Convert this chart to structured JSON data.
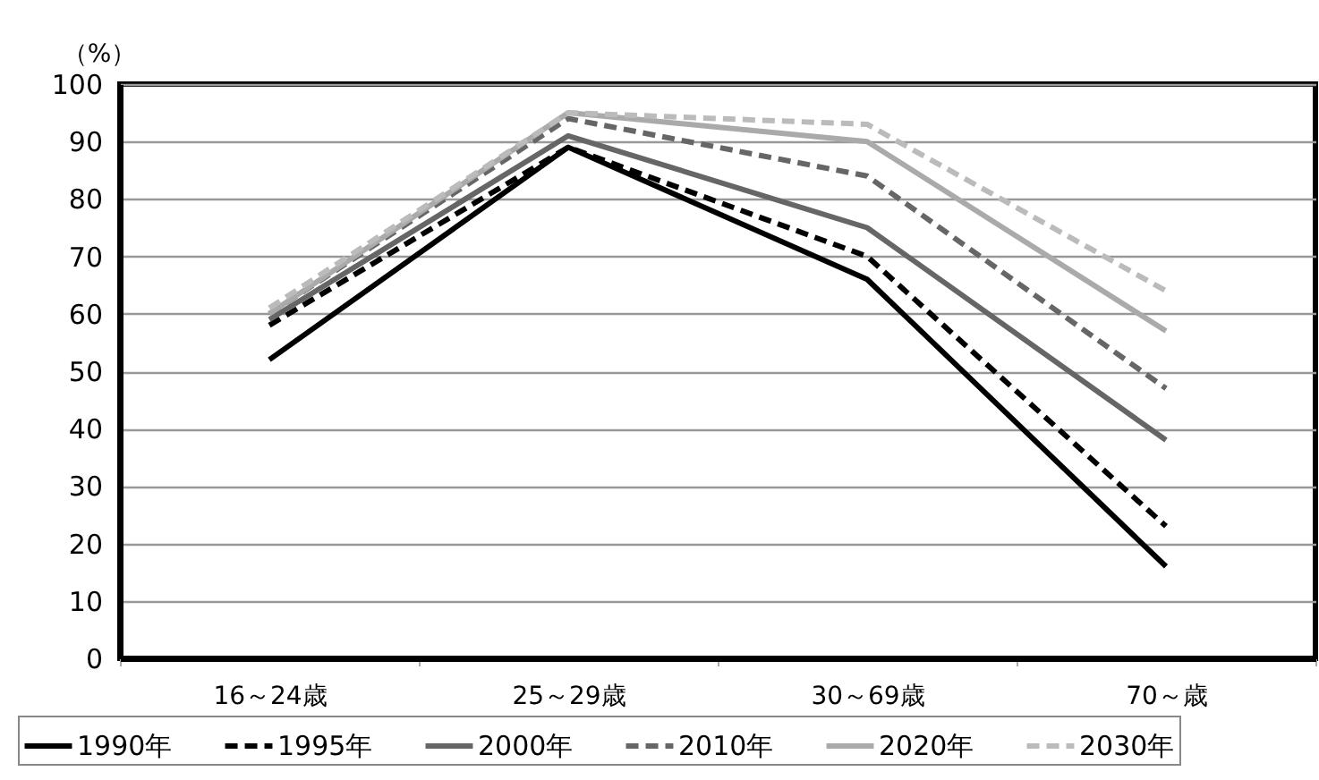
{
  "chart_data": {
    "type": "line",
    "ylabel": "（%）",
    "categories": [
      "16～24歳",
      "25～29歳",
      "30～69歳",
      "70～歳"
    ],
    "series": [
      {
        "name": "1990年",
        "color": "#000000",
        "line_style": "solid",
        "values": [
          52,
          89,
          66,
          16
        ]
      },
      {
        "name": "1995年",
        "color": "#000000",
        "line_style": "dashed",
        "values": [
          58,
          89,
          70,
          23
        ]
      },
      {
        "name": "2000年",
        "color": "#666666",
        "line_style": "solid",
        "values": [
          59,
          91,
          75,
          38
        ]
      },
      {
        "name": "2010年",
        "color": "#666666",
        "line_style": "dashed",
        "values": [
          60,
          94,
          84,
          47
        ]
      },
      {
        "name": "2020年",
        "color": "#aaaaaa",
        "line_style": "solid",
        "values": [
          60,
          95,
          90,
          57
        ]
      },
      {
        "name": "2030年",
        "color": "#bbbbbb",
        "line_style": "dashed",
        "values": [
          61,
          95,
          93,
          64
        ]
      }
    ],
    "ylim": [
      0,
      100
    ],
    "yticks": [
      0,
      10,
      20,
      30,
      40,
      50,
      60,
      70,
      80,
      90,
      100
    ],
    "grid": "y",
    "legend": "bottom",
    "marker": "none"
  }
}
